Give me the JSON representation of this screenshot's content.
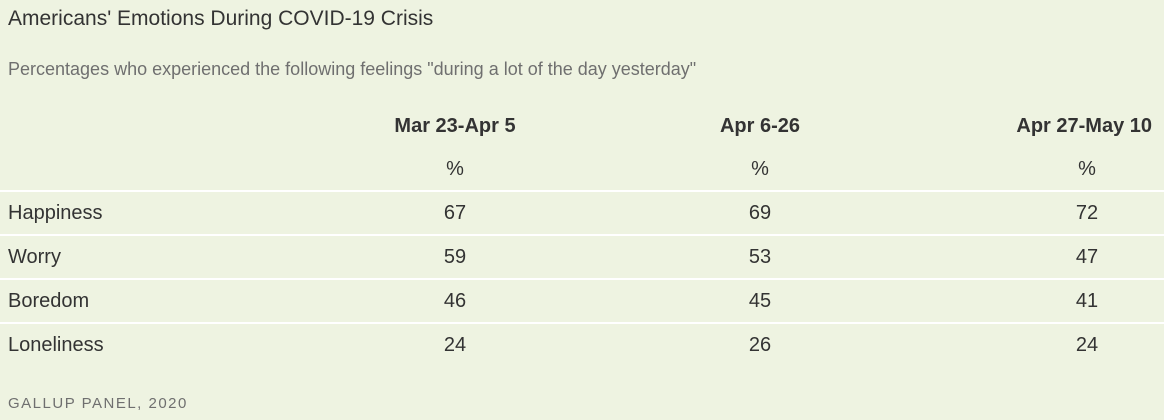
{
  "chart_data": {
    "type": "table",
    "title": "Americans' Emotions During COVID-19 Crisis",
    "subtitle": "Percentages who experienced the following feelings \"during a lot of the day yesterday\"",
    "columns": [
      "Mar 23-Apr 5",
      "Apr 6-26",
      "Apr 27-May 10"
    ],
    "unit_row": [
      "%",
      "%",
      "%"
    ],
    "rows": [
      {
        "label": "Happiness",
        "values": [
          "67",
          "69",
          "72"
        ]
      },
      {
        "label": "Worry",
        "values": [
          "59",
          "53",
          "47"
        ]
      },
      {
        "label": "Boredom",
        "values": [
          "46",
          "45",
          "41"
        ]
      },
      {
        "label": "Loneliness",
        "values": [
          "24",
          "26",
          "24"
        ]
      }
    ],
    "source": "GALLUP PANEL, 2020"
  },
  "colors": {
    "background": "#eef3e1",
    "row_divider": "#ffffff",
    "text": "#333333",
    "muted_text": "#6f6f6f"
  }
}
